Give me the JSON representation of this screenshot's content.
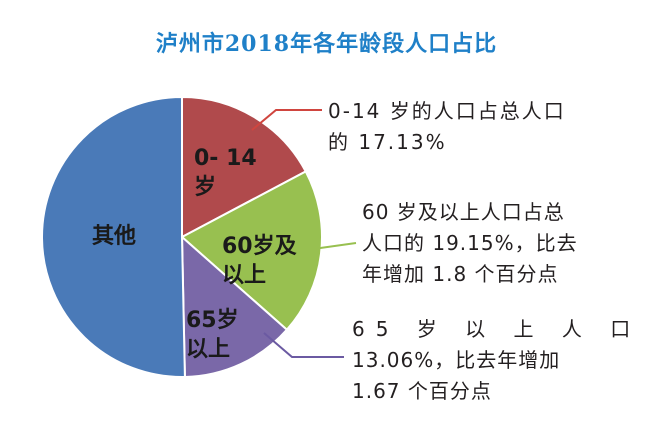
{
  "title": "泸州市2018年各年龄段人口占比",
  "colors": {
    "title": "#1f80c8",
    "other": "#4a7ab8",
    "age_0_14": "#b04a4c",
    "age_60_plus": "#98c050",
    "age_65_plus": "#7a68a8",
    "label_text": "#1a1a1a",
    "annotation_text": "#231f20"
  },
  "chart_data": {
    "type": "pie",
    "title": "泸州市2018年各年龄段人口占比",
    "slices": [
      {
        "label": "其他",
        "value": 50.0,
        "color": "#4a7ab8"
      },
      {
        "label": "0-14岁",
        "value": 17.13,
        "color": "#b04a4c"
      },
      {
        "label": "60岁及以上",
        "value": 19.15,
        "color": "#98c050"
      },
      {
        "label": "65岁以上",
        "value": 13.06,
        "color": "#7a68a8"
      }
    ],
    "slice_labels": {
      "other": "其他",
      "age_0_14": [
        "0- 14",
        "岁"
      ],
      "age_60_plus": [
        "60岁及",
        "以上"
      ],
      "age_65_plus": [
        "65岁",
        "以上"
      ]
    }
  },
  "annotations": {
    "age_0_14": [
      "0-14 岁的人口占总人口",
      "的 17.13%"
    ],
    "age_60_plus": [
      "60 岁及以上人口占总",
      "人口的 19.15%，比去",
      "年增加 1.8 个百分点"
    ],
    "age_65_plus": [
      "65 岁 以 上 人 口",
      "13.06%，比去年增加",
      "1.67 个百分点"
    ]
  }
}
